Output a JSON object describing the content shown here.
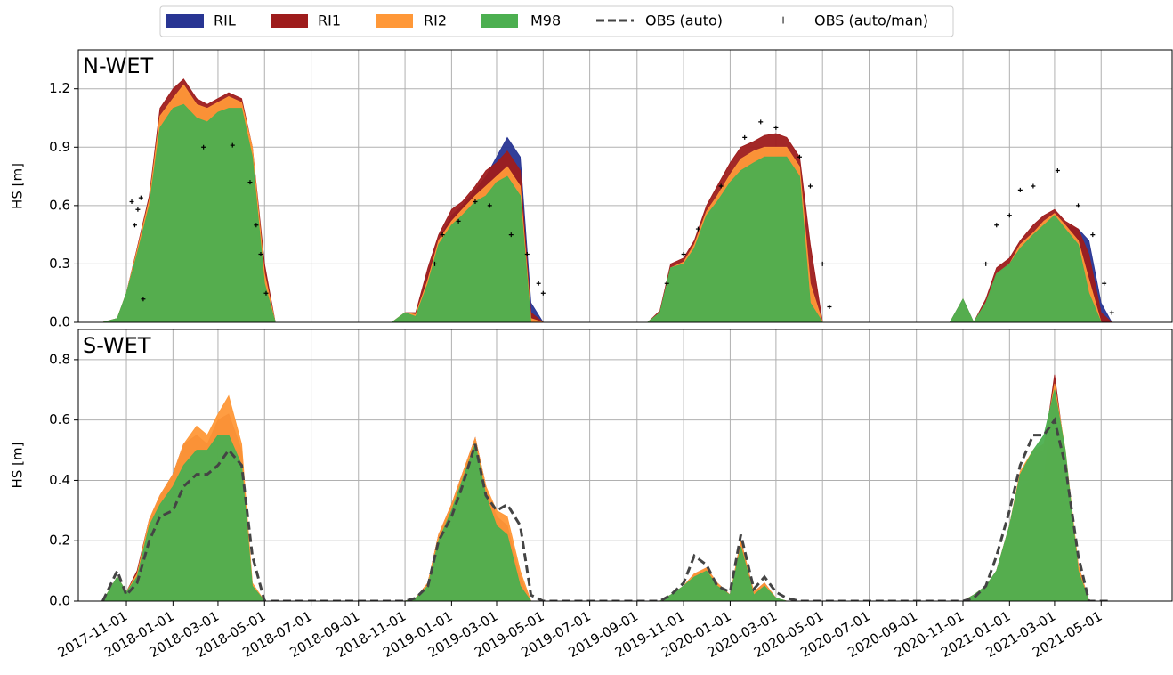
{
  "chart_data": [
    {
      "type": "area",
      "title": "N-WET",
      "ylabel": "HS [m]",
      "xlim": [
        "2017-08-30",
        "2021-08-02"
      ],
      "ylim": [
        0,
        1.4
      ],
      "yticks": [
        {
          "value": 0,
          "label": "0.0"
        },
        0.3,
        0.6,
        0.9,
        1.2
      ],
      "grid": true,
      "x": [
        "2017-10-01",
        "2017-10-20",
        "2017-11-01",
        "2017-11-15",
        "2017-12-01",
        "2017-12-15",
        "2018-01-01",
        "2018-01-15",
        "2018-02-01",
        "2018-02-15",
        "2018-03-01",
        "2018-03-15",
        "2018-04-01",
        "2018-04-15",
        "2018-05-01",
        "2018-05-15",
        "2018-10-15",
        "2018-11-01",
        "2018-11-15",
        "2018-12-01",
        "2018-12-15",
        "2019-01-01",
        "2019-01-15",
        "2019-02-01",
        "2019-02-15",
        "2019-03-01",
        "2019-03-15",
        "2019-04-01",
        "2019-04-15",
        "2019-05-01",
        "2019-09-15",
        "2019-10-01",
        "2019-10-15",
        "2019-11-01",
        "2019-11-15",
        "2019-12-01",
        "2019-12-15",
        "2020-01-01",
        "2020-01-15",
        "2020-02-01",
        "2020-02-15",
        "2020-03-01",
        "2020-03-15",
        "2020-04-01",
        "2020-04-15",
        "2020-05-01",
        "2020-10-15",
        "2020-11-01",
        "2020-11-15",
        "2020-12-01",
        "2020-12-15",
        "2021-01-01",
        "2021-01-15",
        "2021-02-01",
        "2021-02-15",
        "2021-03-01",
        "2021-03-15",
        "2021-04-01",
        "2021-04-15",
        "2021-05-01",
        "2021-05-15"
      ],
      "series": [
        {
          "name": "RIL",
          "type": "area",
          "color": "#283593",
          "values": [
            0,
            0.02,
            0.14,
            0.36,
            0.62,
            1.05,
            1.15,
            1.2,
            1.1,
            1.08,
            1.12,
            1.15,
            1.12,
            0.88,
            0.25,
            0,
            0,
            0.04,
            0.03,
            0.25,
            0.42,
            0.55,
            0.6,
            0.68,
            0.75,
            0.85,
            0.95,
            0.85,
            0.1,
            0,
            0,
            0.05,
            0.25,
            0.28,
            0.35,
            0.5,
            0.58,
            0.7,
            0.78,
            0.82,
            0.84,
            0.85,
            0.88,
            0.8,
            0.2,
            0,
            0,
            0.1,
            0,
            0.08,
            0.22,
            0.28,
            0.36,
            0.44,
            0.5,
            0.55,
            0.5,
            0.48,
            0.42,
            0.1,
            0
          ]
        },
        {
          "name": "RI1",
          "type": "area",
          "color": "#9e1c1c",
          "values": [
            0,
            0.02,
            0.15,
            0.38,
            0.65,
            1.1,
            1.2,
            1.25,
            1.15,
            1.12,
            1.15,
            1.18,
            1.15,
            0.9,
            0.3,
            0,
            0,
            0.05,
            0.05,
            0.28,
            0.45,
            0.58,
            0.62,
            0.7,
            0.78,
            0.82,
            0.88,
            0.78,
            0.05,
            0,
            0,
            0.06,
            0.3,
            0.33,
            0.42,
            0.6,
            0.7,
            0.82,
            0.9,
            0.93,
            0.96,
            0.97,
            0.95,
            0.85,
            0.4,
            0,
            0,
            0.12,
            0,
            0.12,
            0.28,
            0.33,
            0.42,
            0.5,
            0.55,
            0.58,
            0.52,
            0.48,
            0.35,
            0.05,
            0
          ]
        },
        {
          "name": "RI2",
          "type": "area",
          "color": "#ff9838",
          "values": [
            0,
            0.02,
            0.15,
            0.37,
            0.63,
            1.06,
            1.15,
            1.22,
            1.12,
            1.1,
            1.13,
            1.16,
            1.13,
            0.9,
            0.25,
            0,
            0,
            0.05,
            0.04,
            0.22,
            0.42,
            0.52,
            0.58,
            0.65,
            0.7,
            0.75,
            0.8,
            0.7,
            0.02,
            0,
            0,
            0.05,
            0.28,
            0.31,
            0.4,
            0.57,
            0.65,
            0.76,
            0.84,
            0.88,
            0.9,
            0.9,
            0.9,
            0.8,
            0.2,
            0,
            0,
            0.11,
            0,
            0.1,
            0.25,
            0.3,
            0.4,
            0.46,
            0.52,
            0.56,
            0.5,
            0.42,
            0.22,
            0,
            0
          ]
        },
        {
          "name": "M98",
          "type": "area",
          "color": "#4caf50",
          "values": [
            0,
            0.02,
            0.15,
            0.35,
            0.6,
            1.0,
            1.1,
            1.12,
            1.05,
            1.03,
            1.08,
            1.1,
            1.1,
            0.85,
            0.2,
            0,
            0,
            0.05,
            0.03,
            0.2,
            0.4,
            0.5,
            0.55,
            0.62,
            0.65,
            0.72,
            0.75,
            0.65,
            0,
            0,
            0,
            0.05,
            0.28,
            0.3,
            0.38,
            0.55,
            0.62,
            0.72,
            0.78,
            0.82,
            0.85,
            0.85,
            0.85,
            0.75,
            0.1,
            0,
            0,
            0.12,
            0,
            0.1,
            0.25,
            0.3,
            0.38,
            0.45,
            0.5,
            0.55,
            0.48,
            0.4,
            0.15,
            0,
            0
          ]
        },
        {
          "name": "OBS (auto/man)",
          "type": "scatter",
          "color": "#000000",
          "x": [
            "2017-11-08",
            "2017-11-12",
            "2017-11-16",
            "2017-11-20",
            "2017-11-23",
            "2018-02-10",
            "2018-03-20",
            "2018-04-12",
            "2018-04-20",
            "2018-04-26",
            "2018-05-03",
            "2018-12-10",
            "2018-12-20",
            "2019-01-10",
            "2019-02-01",
            "2019-02-20",
            "2019-03-20",
            "2019-04-10",
            "2019-04-25",
            "2019-05-01",
            "2019-10-10",
            "2019-11-01",
            "2019-11-20",
            "2019-12-20",
            "2020-01-20",
            "2020-02-10",
            "2020-03-01",
            "2020-04-01",
            "2020-04-15",
            "2020-05-01",
            "2020-05-10",
            "2020-12-01",
            "2020-12-15",
            "2021-01-01",
            "2021-01-15",
            "2021-02-01",
            "2021-03-05",
            "2021-04-01",
            "2021-04-20",
            "2021-05-05",
            "2021-05-15"
          ],
          "values": [
            0.62,
            0.5,
            0.58,
            0.64,
            0.12,
            0.9,
            0.91,
            0.72,
            0.5,
            0.35,
            0.15,
            0.3,
            0.45,
            0.52,
            0.62,
            0.6,
            0.45,
            0.35,
            0.2,
            0.15,
            0.2,
            0.35,
            0.48,
            0.7,
            0.95,
            1.03,
            1.0,
            0.85,
            0.7,
            0.3,
            0.08,
            0.3,
            0.5,
            0.55,
            0.68,
            0.7,
            0.78,
            0.6,
            0.45,
            0.2,
            0.05
          ]
        }
      ]
    },
    {
      "type": "area",
      "title": "S-WET",
      "ylabel": "HS [m]",
      "xlim": [
        "2017-08-30",
        "2021-08-02"
      ],
      "ylim": [
        0,
        0.9
      ],
      "yticks": [
        {
          "value": 0,
          "label": "0.0"
        },
        0.2,
        0.4,
        0.6,
        0.8
      ],
      "xticks": [
        "2017-11-01",
        "2018-01-01",
        "2018-03-01",
        "2018-05-01",
        "2018-07-01",
        "2018-09-01",
        "2018-11-01",
        "2019-01-01",
        "2019-03-01",
        "2019-05-01",
        "2019-07-01",
        "2019-09-01",
        "2019-11-01",
        "2020-01-01",
        "2020-03-01",
        "2020-05-01",
        "2020-07-01",
        "2020-09-01",
        "2020-11-01",
        "2021-01-01",
        "2021-03-01",
        "2021-05-01"
      ],
      "grid": true,
      "x": [
        "2017-10-01",
        "2017-10-20",
        "2017-11-01",
        "2017-11-15",
        "2017-12-01",
        "2017-12-15",
        "2018-01-01",
        "2018-01-15",
        "2018-02-01",
        "2018-02-15",
        "2018-03-01",
        "2018-03-15",
        "2018-04-01",
        "2018-04-15",
        "2018-05-01",
        "2018-05-15",
        "2018-10-15",
        "2018-11-01",
        "2018-11-15",
        "2018-12-01",
        "2018-12-15",
        "2019-01-01",
        "2019-01-15",
        "2019-02-01",
        "2019-02-15",
        "2019-03-01",
        "2019-03-15",
        "2019-04-01",
        "2019-04-15",
        "2019-05-01",
        "2019-09-15",
        "2019-10-01",
        "2019-10-15",
        "2019-11-01",
        "2019-11-15",
        "2019-12-01",
        "2019-12-15",
        "2020-01-01",
        "2020-01-15",
        "2020-02-01",
        "2020-02-15",
        "2020-03-01",
        "2020-03-15",
        "2020-04-01",
        "2020-04-15",
        "2020-05-01",
        "2020-10-15",
        "2020-11-01",
        "2020-11-15",
        "2020-12-01",
        "2020-12-15",
        "2021-01-01",
        "2021-01-15",
        "2021-02-01",
        "2021-02-15",
        "2021-03-01",
        "2021-03-15",
        "2021-04-01",
        "2021-04-15",
        "2021-05-01",
        "2021-05-15"
      ],
      "series": [
        {
          "type": "area",
          "color": "#283593",
          "values": [
            0,
            0.07,
            0.02,
            0.07,
            0.22,
            0.28,
            0.32,
            0.38,
            0.4,
            0.4,
            0.45,
            0.48,
            0.42,
            0.04,
            0,
            0,
            0,
            0,
            0.01,
            0.05,
            0.2,
            0.3,
            0.4,
            0.52,
            0.36,
            0.26,
            0.22,
            0.06,
            0,
            0,
            0,
            0,
            0.02,
            0.04,
            0.08,
            0.1,
            0.05,
            0.02,
            0.19,
            0.02,
            0.05,
            0.01,
            0,
            0,
            0,
            0,
            0,
            0,
            0.02,
            0.05,
            0.1,
            0.24,
            0.38,
            0.4,
            0.4,
            0.7,
            0.45,
            0.1,
            0,
            0,
            0
          ]
        },
        {
          "type": "area",
          "color": "#9e1c1c",
          "values": [
            0,
            0.08,
            0.03,
            0.1,
            0.27,
            0.35,
            0.42,
            0.52,
            0.55,
            0.52,
            0.6,
            0.62,
            0.5,
            0.05,
            0,
            0,
            0,
            0,
            0.01,
            0.06,
            0.22,
            0.32,
            0.42,
            0.54,
            0.38,
            0.28,
            0.25,
            0.08,
            0,
            0,
            0,
            0,
            0.02,
            0.05,
            0.09,
            0.11,
            0.06,
            0.02,
            0.2,
            0.03,
            0.06,
            0.01,
            0,
            0,
            0,
            0,
            0,
            0,
            0.02,
            0.05,
            0.1,
            0.25,
            0.42,
            0.48,
            0.5,
            0.75,
            0.48,
            0.12,
            0,
            0,
            0
          ]
        },
        {
          "type": "area",
          "color": "#ff9838",
          "values": [
            0,
            0.08,
            0.03,
            0.09,
            0.27,
            0.35,
            0.42,
            0.52,
            0.58,
            0.55,
            0.62,
            0.68,
            0.52,
            0.06,
            0,
            0,
            0,
            0,
            0.01,
            0.06,
            0.22,
            0.32,
            0.42,
            0.54,
            0.38,
            0.3,
            0.28,
            0.1,
            0,
            0,
            0,
            0,
            0.02,
            0.05,
            0.09,
            0.11,
            0.06,
            0.02,
            0.2,
            0.03,
            0.06,
            0.01,
            0,
            0,
            0,
            0,
            0,
            0,
            0.02,
            0.05,
            0.1,
            0.25,
            0.43,
            0.5,
            0.52,
            0.72,
            0.5,
            0.12,
            0,
            0,
            0
          ]
        },
        {
          "type": "area",
          "color": "#4caf50",
          "values": [
            0,
            0.08,
            0.03,
            0.08,
            0.25,
            0.32,
            0.38,
            0.45,
            0.5,
            0.5,
            0.55,
            0.55,
            0.45,
            0.05,
            0,
            0,
            0,
            0,
            0.01,
            0.05,
            0.2,
            0.3,
            0.4,
            0.52,
            0.35,
            0.25,
            0.22,
            0.05,
            0,
            0,
            0,
            0,
            0.02,
            0.05,
            0.08,
            0.1,
            0.05,
            0.02,
            0.18,
            0.02,
            0.05,
            0.01,
            0,
            0,
            0,
            0,
            0,
            0,
            0.02,
            0.05,
            0.1,
            0.25,
            0.42,
            0.5,
            0.55,
            0.7,
            0.5,
            0.1,
            0,
            0,
            0
          ]
        },
        {
          "name": "OBS (auto)",
          "type": "line",
          "color": "#444444",
          "values": [
            0,
            0.1,
            0.02,
            0.06,
            0.2,
            0.28,
            0.3,
            0.38,
            0.42,
            0.42,
            0.45,
            0.5,
            0.45,
            0.15,
            0,
            0,
            0,
            0,
            0.01,
            0.05,
            0.2,
            0.28,
            0.38,
            0.52,
            0.35,
            0.3,
            0.32,
            0.25,
            0.02,
            0,
            0,
            0,
            0.02,
            0.06,
            0.15,
            0.12,
            0.05,
            0.03,
            0.22,
            0.04,
            0.08,
            0.03,
            0.01,
            0,
            0,
            0,
            0,
            0,
            0.01,
            0.05,
            0.15,
            0.3,
            0.45,
            0.55,
            0.55,
            0.6,
            0.45,
            0.15,
            0,
            0,
            0
          ]
        }
      ]
    }
  ]
}
